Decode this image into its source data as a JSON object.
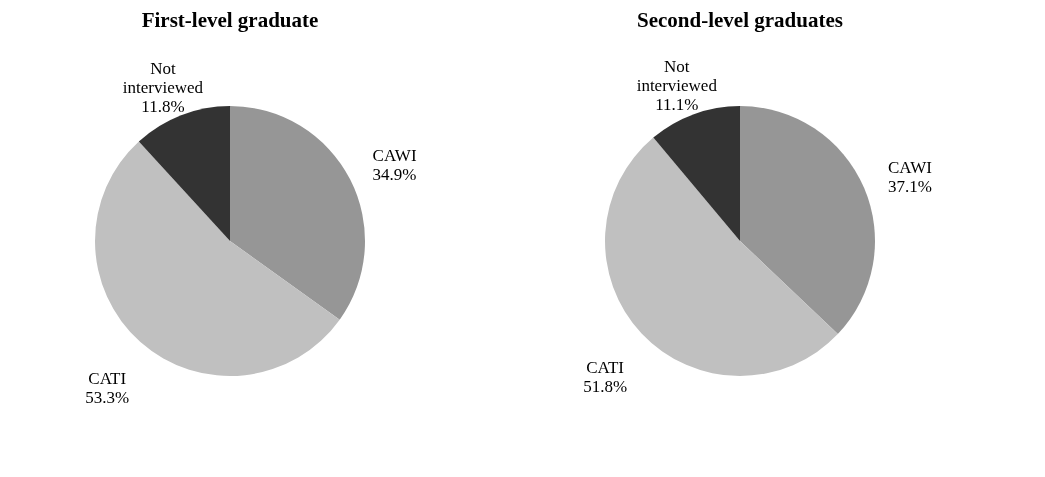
{
  "chart_data": [
    {
      "type": "pie",
      "title": "First-level graduate",
      "categories": [
        "CAWI",
        "CATI",
        "Not interviewed"
      ],
      "values": [
        34.9,
        53.3,
        11.8
      ],
      "value_labels": [
        "34.9%",
        "53.3%",
        "11.8%"
      ],
      "colors": [
        "#969696",
        "#c0c0c0",
        "#333333"
      ],
      "legend": false
    },
    {
      "type": "pie",
      "title": "Second-level graduates",
      "categories": [
        "CAWI",
        "CATI",
        "Not interviewed"
      ],
      "values": [
        37.1,
        51.8,
        11.1
      ],
      "value_labels": [
        "37.1%",
        "51.8%",
        "11.1%"
      ],
      "colors": [
        "#969696",
        "#c0c0c0",
        "#333333"
      ],
      "legend": false
    }
  ]
}
